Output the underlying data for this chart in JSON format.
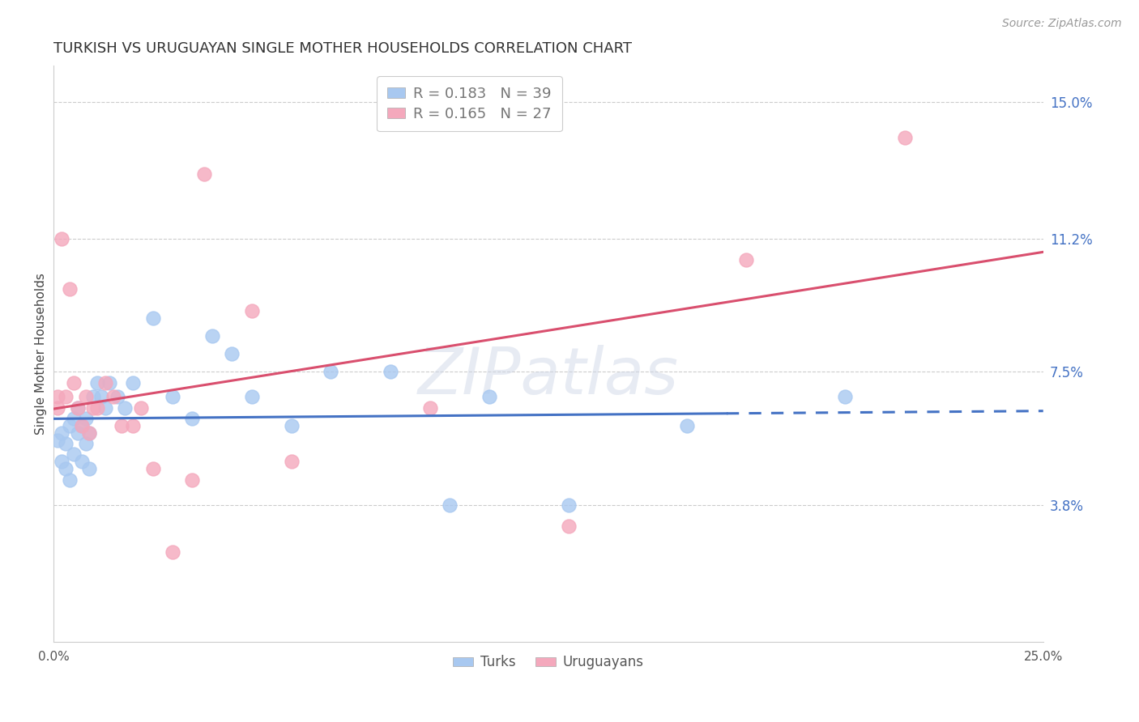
{
  "title": "TURKISH VS URUGUAYAN SINGLE MOTHER HOUSEHOLDS CORRELATION CHART",
  "source": "Source: ZipAtlas.com",
  "ylabel": "Single Mother Households",
  "xlim": [
    0.0,
    0.25
  ],
  "ylim": [
    0.0,
    0.16
  ],
  "xtick_positions": [
    0.0,
    0.05,
    0.1,
    0.15,
    0.2,
    0.25
  ],
  "xtick_labels": [
    "0.0%",
    "",
    "",
    "",
    "",
    "25.0%"
  ],
  "ytick_positions": [
    0.038,
    0.075,
    0.112,
    0.15
  ],
  "ytick_labels": [
    "3.8%",
    "7.5%",
    "11.2%",
    "15.0%"
  ],
  "turks_r": 0.183,
  "turks_n": 39,
  "uruguayans_r": 0.165,
  "uruguayans_n": 27,
  "turk_color": "#a8c8f0",
  "uruguayan_color": "#f4a8bc",
  "turk_line_color": "#4472c4",
  "uruguayan_line_color": "#d94f6e",
  "watermark": "ZIPatlas",
  "turks_x": [
    0.001,
    0.002,
    0.002,
    0.003,
    0.003,
    0.004,
    0.004,
    0.005,
    0.005,
    0.006,
    0.006,
    0.007,
    0.007,
    0.008,
    0.008,
    0.009,
    0.009,
    0.01,
    0.011,
    0.012,
    0.013,
    0.014,
    0.016,
    0.018,
    0.02,
    0.025,
    0.03,
    0.035,
    0.04,
    0.045,
    0.05,
    0.06,
    0.07,
    0.085,
    0.1,
    0.11,
    0.13,
    0.16,
    0.2
  ],
  "turks_y": [
    0.056,
    0.05,
    0.058,
    0.048,
    0.055,
    0.045,
    0.06,
    0.052,
    0.062,
    0.058,
    0.065,
    0.05,
    0.06,
    0.055,
    0.062,
    0.048,
    0.058,
    0.068,
    0.072,
    0.068,
    0.065,
    0.072,
    0.068,
    0.065,
    0.072,
    0.09,
    0.068,
    0.062,
    0.085,
    0.08,
    0.068,
    0.06,
    0.075,
    0.075,
    0.038,
    0.068,
    0.038,
    0.06,
    0.068
  ],
  "uruguayans_x": [
    0.001,
    0.001,
    0.002,
    0.003,
    0.004,
    0.005,
    0.006,
    0.007,
    0.008,
    0.009,
    0.01,
    0.011,
    0.013,
    0.015,
    0.017,
    0.02,
    0.022,
    0.025,
    0.03,
    0.035,
    0.038,
    0.05,
    0.06,
    0.095,
    0.13,
    0.175,
    0.215
  ],
  "uruguayans_y": [
    0.065,
    0.068,
    0.112,
    0.068,
    0.098,
    0.072,
    0.065,
    0.06,
    0.068,
    0.058,
    0.065,
    0.065,
    0.072,
    0.068,
    0.06,
    0.06,
    0.065,
    0.048,
    0.025,
    0.045,
    0.13,
    0.092,
    0.05,
    0.065,
    0.032,
    0.106,
    0.14
  ]
}
